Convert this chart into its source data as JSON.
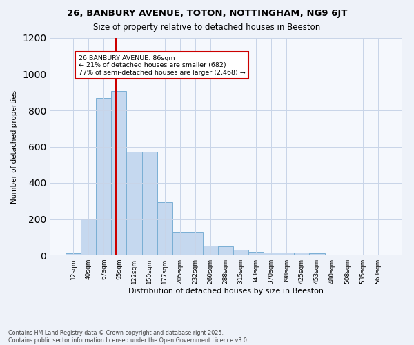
{
  "title1": "26, BANBURY AVENUE, TOTON, NOTTINGHAM, NG9 6JT",
  "title2": "Size of property relative to detached houses in Beeston",
  "xlabel": "Distribution of detached houses by size in Beeston",
  "ylabel": "Number of detached properties",
  "categories": [
    "12sqm",
    "40sqm",
    "67sqm",
    "95sqm",
    "122sqm",
    "150sqm",
    "177sqm",
    "205sqm",
    "232sqm",
    "260sqm",
    "288sqm",
    "315sqm",
    "343sqm",
    "370sqm",
    "398sqm",
    "425sqm",
    "453sqm",
    "480sqm",
    "508sqm",
    "535sqm",
    "563sqm"
  ],
  "values": [
    10,
    200,
    870,
    905,
    570,
    570,
    295,
    130,
    130,
    55,
    50,
    30,
    20,
    15,
    15,
    15,
    10,
    5,
    2,
    1,
    1
  ],
  "bar_color": "#c5d8ef",
  "bar_edge_color": "#7aafd4",
  "vline_x_index": 2.78,
  "vline_color": "#cc0000",
  "annotation_text": "26 BANBURY AVENUE: 86sqm\n← 21% of detached houses are smaller (682)\n77% of semi-detached houses are larger (2,468) →",
  "annotation_box_color": "#ffffff",
  "annotation_box_edge": "#cc0000",
  "ylim": [
    0,
    1200
  ],
  "yticks": [
    0,
    200,
    400,
    600,
    800,
    1000,
    1200
  ],
  "footer": "Contains HM Land Registry data © Crown copyright and database right 2025.\nContains public sector information licensed under the Open Government Licence v3.0.",
  "bg_color": "#eef2f9",
  "plot_bg_color": "#f5f8fd",
  "grid_color": "#c8d4e8",
  "title1_fontsize": 9.5,
  "title2_fontsize": 8.5,
  "xlabel_fontsize": 8,
  "ylabel_fontsize": 7.5,
  "tick_fontsize": 6.5,
  "footer_fontsize": 5.8
}
